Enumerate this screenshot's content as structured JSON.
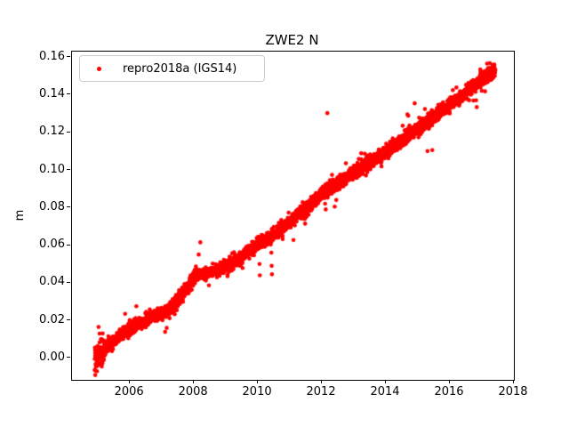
{
  "title": "ZWE2 N",
  "colors": {
    "marker": "#ff0000",
    "axis": "#000000",
    "background": "#ffffff",
    "legend_border": "#cccccc"
  },
  "legend": {
    "label": "repro2018a (IGS14)",
    "marker_icon": "red-dot"
  },
  "axes": {
    "ylabel": "m",
    "xlim": [
      2004.19,
      2018.0
    ],
    "ylim": [
      -0.0116,
      0.1629
    ],
    "xticks": [
      {
        "v": 2006,
        "label": "2006"
      },
      {
        "v": 2008,
        "label": "2008"
      },
      {
        "v": 2010,
        "label": "2010"
      },
      {
        "v": 2012,
        "label": "2012"
      },
      {
        "v": 2014,
        "label": "2014"
      },
      {
        "v": 2016,
        "label": "2016"
      },
      {
        "v": 2018,
        "label": "2018"
      }
    ],
    "yticks": [
      {
        "v": 0.0,
        "label": "0.00"
      },
      {
        "v": 0.02,
        "label": "0.02"
      },
      {
        "v": 0.04,
        "label": "0.04"
      },
      {
        "v": 0.06,
        "label": "0.06"
      },
      {
        "v": 0.08,
        "label": "0.08"
      },
      {
        "v": 0.1,
        "label": "0.10"
      },
      {
        "v": 0.12,
        "label": "0.12"
      },
      {
        "v": 0.14,
        "label": "0.14"
      },
      {
        "v": 0.16,
        "label": "0.16"
      }
    ]
  },
  "chart_data": {
    "type": "scatter",
    "title": "ZWE2 N",
    "xlabel": "",
    "ylabel": "m",
    "xlim": [
      2004.19,
      2018.0
    ],
    "ylim": [
      -0.0116,
      0.1629
    ],
    "grid": false,
    "legend_position": "upper left",
    "series": [
      {
        "name": "repro2018a (IGS14)",
        "color": "#ff0000",
        "marker": "dot",
        "marker_radius_px": 2.3,
        "x_start": 2004.9,
        "x_end": 2017.42,
        "samples_per_year": 365,
        "noise_sigma_m": 0.0016,
        "heavy_tail_fraction": 0.03,
        "heavy_tail_multiplier": 2.2,
        "start_spread": {
          "until": 2005.2,
          "sigma": 0.0033
        },
        "end_spread": {
          "from": 2016.95,
          "sigma": 0.002
        },
        "trend_breakpoints": [
          [
            2004.9,
            0.0
          ],
          [
            2005.5,
            0.009
          ],
          [
            2006.0,
            0.016
          ],
          [
            2006.5,
            0.0205
          ],
          [
            2007.0,
            0.024
          ],
          [
            2007.35,
            0.027
          ],
          [
            2008.05,
            0.0435
          ],
          [
            2008.8,
            0.047
          ],
          [
            2009.5,
            0.054
          ],
          [
            2010.0,
            0.0605
          ],
          [
            2010.5,
            0.0655
          ],
          [
            2011.0,
            0.0725
          ],
          [
            2011.5,
            0.079
          ],
          [
            2012.0,
            0.0875
          ],
          [
            2012.5,
            0.0925
          ],
          [
            2013.0,
            0.0985
          ],
          [
            2013.5,
            0.104
          ],
          [
            2014.0,
            0.11
          ],
          [
            2014.5,
            0.116
          ],
          [
            2015.0,
            0.1225
          ],
          [
            2015.5,
            0.1285
          ],
          [
            2016.0,
            0.135
          ],
          [
            2016.5,
            0.1412
          ],
          [
            2017.0,
            0.148
          ],
          [
            2017.42,
            0.1535
          ]
        ],
        "outliers": [
          [
            2004.97,
            -0.007
          ],
          [
            2005.02,
            0.0165
          ],
          [
            2005.05,
            0.013
          ],
          [
            2005.12,
            -0.0045
          ],
          [
            2005.85,
            0.0235
          ],
          [
            2006.2,
            0.0275
          ],
          [
            2007.1,
            0.0139
          ],
          [
            2007.15,
            0.016
          ],
          [
            2008.15,
            0.055
          ],
          [
            2008.2,
            0.0615
          ],
          [
            2009.05,
            0.0435
          ],
          [
            2010.05,
            0.0585
          ],
          [
            2010.05,
            0.05
          ],
          [
            2010.06,
            0.044
          ],
          [
            2010.42,
            0.056
          ],
          [
            2010.43,
            0.049
          ],
          [
            2010.44,
            0.0445
          ],
          [
            2011.3,
            0.0745
          ],
          [
            2012.1,
            0.082
          ],
          [
            2012.12,
            0.079
          ],
          [
            2012.17,
            0.1302
          ],
          [
            2012.4,
            0.0805
          ],
          [
            2012.45,
            0.084
          ],
          [
            2012.75,
            0.1035
          ],
          [
            2014.7,
            0.1288
          ],
          [
            2014.9,
            0.1354
          ],
          [
            2015.3,
            0.11
          ],
          [
            2015.45,
            0.1105
          ],
          [
            2016.8,
            0.1415
          ],
          [
            2016.82,
            0.137
          ],
          [
            2016.84,
            0.1334
          ]
        ]
      }
    ]
  }
}
